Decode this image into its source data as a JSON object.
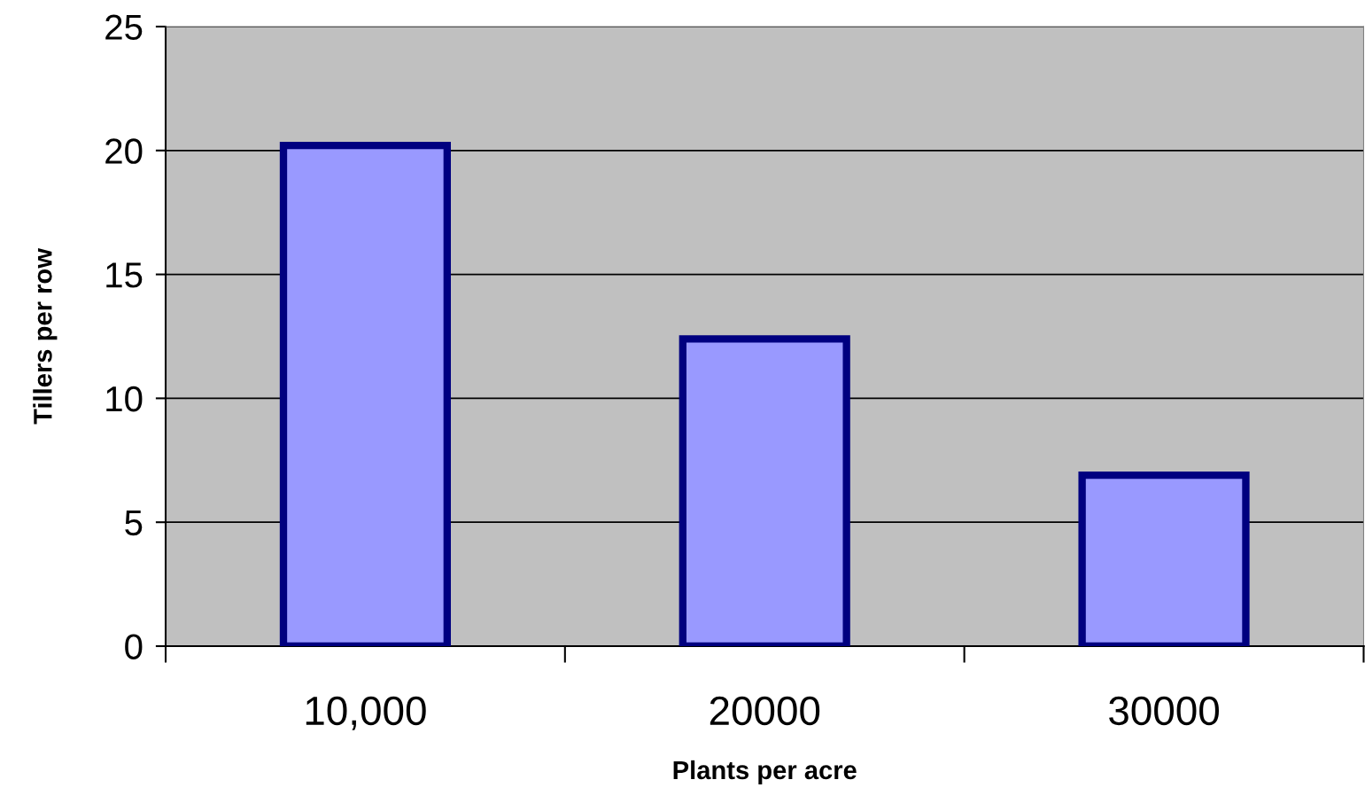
{
  "chart_data": {
    "type": "bar",
    "xlabel": "Plants per acre",
    "ylabel": "Tillers per row",
    "categories": [
      "10,000",
      "20000",
      "30000"
    ],
    "series": [
      {
        "color": "#9999ff",
        "values": [
          20.2,
          12.4,
          6.9
        ]
      }
    ],
    "ylim": [
      0,
      25
    ],
    "yticks": [
      0,
      5,
      10,
      15,
      20,
      25
    ],
    "grid": "y"
  }
}
